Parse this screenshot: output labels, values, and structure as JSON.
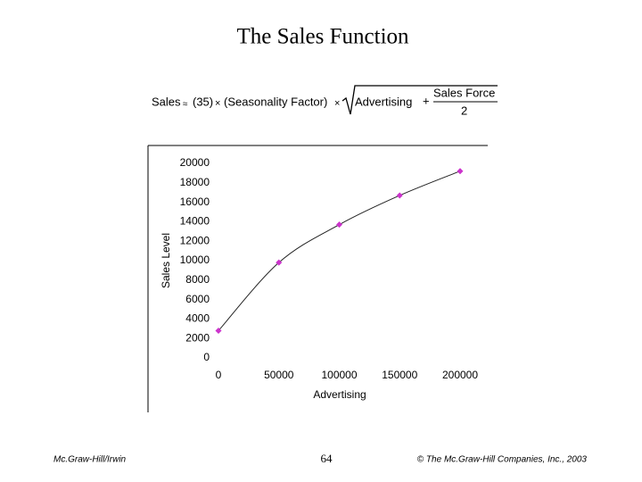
{
  "slide": {
    "title": "The Sales Function",
    "formula": {
      "lhs": "Sales",
      "approx": "≈",
      "constant": "(35)",
      "times1": "×",
      "factor": "(Seasonality Factor)",
      "times2": "×",
      "term1": "Advertising",
      "plus": "+",
      "numerator": "Sales Force",
      "denominator": "2"
    },
    "footer": {
      "left": "Mc.Graw-Hill/Irwin",
      "page": "64",
      "right": "© The Mc.Graw-Hill Companies, Inc., 2003"
    }
  },
  "chart_data": {
    "type": "line",
    "x_label": "Advertising",
    "y_label": "Sales Level",
    "x": [
      0,
      50000,
      100000,
      150000,
      200000
    ],
    "series": [
      {
        "name": "Sales Level",
        "color": "#cc33cc",
        "values": [
          2800,
          9800,
          13700,
          16700,
          19200
        ]
      }
    ],
    "xlim": [
      0,
      200000
    ],
    "xticks": [
      0,
      50000,
      100000,
      150000,
      200000
    ],
    "ylim": [
      0,
      20000
    ],
    "yticks": [
      0,
      2000,
      4000,
      6000,
      8000,
      10000,
      12000,
      14000,
      16000,
      18000,
      20000
    ]
  }
}
